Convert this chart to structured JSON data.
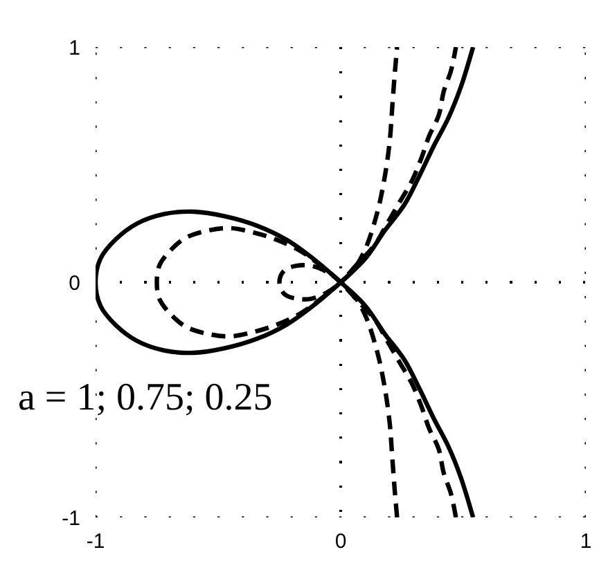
{
  "chart_data": {
    "type": "line",
    "xlim": [
      -1,
      1
    ],
    "ylim": [
      -1,
      1
    ],
    "xticks": [
      -1,
      0,
      1
    ],
    "yticks": [
      -1,
      0,
      1
    ],
    "grid": true,
    "annotations": [
      "a = 1; 0.75; 0.25"
    ],
    "series": [
      {
        "color": "#000000",
        "line_style": "solid",
        "x": [
          0.54,
          0.49,
          0.44,
          0.38,
          0.32,
          0.26,
          0.18,
          0.1,
          0,
          -0.1,
          -0.22,
          -0.34,
          -0.47,
          -0.6,
          -0.72,
          -0.83,
          -0.92,
          -0.98,
          -1.0,
          -0.98,
          -0.92,
          -0.83,
          -0.72,
          -0.6,
          -0.47,
          -0.34,
          -0.22,
          -0.1,
          0,
          0.1,
          0.18,
          0.26,
          0.32,
          0.38,
          0.44,
          0.49,
          0.54
        ],
        "values": [
          -1.0,
          -0.83,
          -0.7,
          -0.58,
          -0.45,
          -0.33,
          -0.22,
          -0.1,
          0,
          0.09,
          0.18,
          0.24,
          0.28,
          0.3,
          0.29,
          0.25,
          0.18,
          0.1,
          0,
          -0.1,
          -0.18,
          -0.25,
          -0.29,
          -0.3,
          -0.28,
          -0.24,
          -0.18,
          -0.09,
          0,
          0.1,
          0.22,
          0.33,
          0.45,
          0.58,
          0.7,
          0.83,
          1.0
        ]
      },
      {
        "color": "#000000",
        "line_style": "dashed",
        "x": [
          0.47,
          0.45,
          0.42,
          0.4,
          0.36,
          0.33,
          0.29,
          0.24,
          0.19,
          0.14,
          0.07,
          0,
          -0.08,
          -0.16,
          -0.26,
          -0.35,
          -0.45,
          -0.54,
          -0.63,
          -0.69,
          -0.74,
          -0.75,
          -0.74,
          -0.69,
          -0.63,
          -0.54,
          -0.45,
          -0.35,
          -0.26,
          -0.16,
          -0.08,
          0,
          0.07,
          0.14,
          0.19,
          0.24,
          0.29,
          0.33,
          0.36,
          0.4,
          0.42,
          0.45,
          0.47
        ],
        "values": [
          -1.0,
          -0.9,
          -0.81,
          -0.71,
          -0.62,
          -0.53,
          -0.43,
          -0.34,
          -0.25,
          -0.16,
          -0.08,
          0,
          0.07,
          0.13,
          0.18,
          0.21,
          0.23,
          0.22,
          0.19,
          0.14,
          0.07,
          0,
          -0.07,
          -0.14,
          -0.19,
          -0.22,
          -0.23,
          -0.21,
          -0.18,
          -0.13,
          -0.07,
          0,
          0.08,
          0.16,
          0.25,
          0.34,
          0.43,
          0.53,
          0.62,
          0.71,
          0.81,
          0.9,
          1.0
        ]
      },
      {
        "color": "#000000",
        "line_style": "dashed",
        "x": [
          0.23,
          0.22,
          0.21,
          0.2,
          0.18,
          0.15,
          0.1,
          0.05,
          0,
          -0.05,
          -0.12,
          -0.18,
          -0.23,
          -0.25,
          -0.23,
          -0.18,
          -0.12,
          -0.05,
          0,
          0.05,
          0.1,
          0.15,
          0.18,
          0.2,
          0.21,
          0.22,
          0.23
        ],
        "values": [
          -1.0,
          -0.88,
          -0.74,
          -0.6,
          -0.45,
          -0.3,
          -0.14,
          -0.05,
          0,
          0.04,
          0.07,
          0.07,
          0.05,
          0,
          -0.05,
          -0.07,
          -0.07,
          -0.04,
          0,
          0.05,
          0.14,
          0.3,
          0.45,
          0.6,
          0.74,
          0.88,
          1.0
        ]
      }
    ]
  }
}
